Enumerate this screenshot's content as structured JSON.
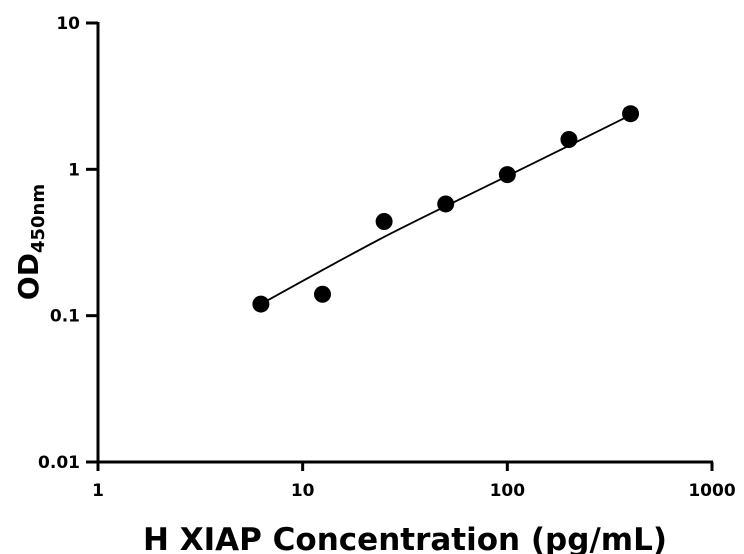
{
  "chart_data": {
    "type": "scatter",
    "xlabel": "H XIAP Concentration (pg/mL)",
    "ylabel_main": "OD",
    "ylabel_sub": "450nm",
    "x_scale": "log",
    "y_scale": "log",
    "xlim": [
      1,
      1000
    ],
    "ylim": [
      0.01,
      10
    ],
    "x_ticks": [
      {
        "value": 1,
        "label": "1"
      },
      {
        "value": 10,
        "label": "10"
      },
      {
        "value": 100,
        "label": "100"
      },
      {
        "value": 1000,
        "label": "1000"
      }
    ],
    "y_ticks": [
      {
        "value": 0.01,
        "label": "0.01"
      },
      {
        "value": 0.1,
        "label": "0.1"
      },
      {
        "value": 1,
        "label": "1"
      },
      {
        "value": 10,
        "label": "10"
      }
    ],
    "grid": false,
    "series": [
      {
        "points": [
          {
            "x": 6.25,
            "y": 0.12
          },
          {
            "x": 12.5,
            "y": 0.14
          },
          {
            "x": 25,
            "y": 0.44
          },
          {
            "x": 50,
            "y": 0.58
          },
          {
            "x": 100,
            "y": 0.92
          },
          {
            "x": 200,
            "y": 1.6
          },
          {
            "x": 400,
            "y": 2.4
          }
        ],
        "fit_curve": {
          "x": [
            6.25,
            12.5,
            25,
            50,
            100,
            200,
            400
          ],
          "y": [
            0.12,
            0.205,
            0.345,
            0.56,
            0.9,
            1.45,
            2.35
          ]
        },
        "marker_color": "#000000",
        "line_color": "#000000"
      }
    ]
  }
}
